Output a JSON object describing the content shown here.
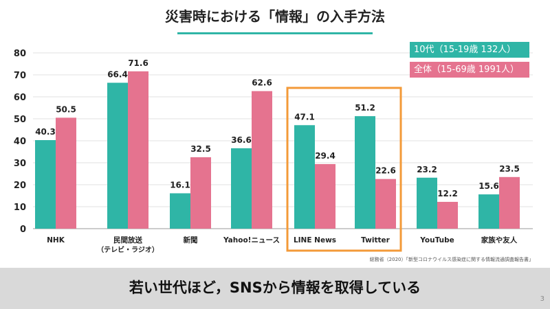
{
  "title": "災害時における「情報」の入手方法",
  "message": "若い世代ほど，SNSから情報を取得している",
  "source": "総務省（2020）「新型コロナウイルス感染症に関する情報流通調査報告書」",
  "page_number": "3",
  "colors": {
    "teal": "#2fb5a6",
    "pink": "#e5738f",
    "highlight": "#f39a38"
  },
  "chart_data": {
    "type": "bar",
    "categories": [
      "NHK",
      "民間放送\n（テレビ・ラジオ）",
      "新聞",
      "Yahoo!ニュース",
      "LINE News",
      "Twitter",
      "YouTube",
      "家族や友人"
    ],
    "series": [
      {
        "name": "10代（15-19歳  132人）",
        "values": [
          40.3,
          66.4,
          16.1,
          36.6,
          47.1,
          51.2,
          23.2,
          15.6
        ]
      },
      {
        "name": "全体（15-69歳  1991人）",
        "values": [
          50.5,
          71.6,
          32.5,
          62.6,
          29.4,
          22.6,
          12.2,
          23.5
        ]
      }
    ],
    "ylim": [
      0,
      80
    ],
    "yticks": [
      0,
      10,
      20,
      30,
      40,
      50,
      60,
      70,
      80
    ],
    "grid": true,
    "legend": "top-right",
    "highlighted_categories": [
      "LINE News",
      "Twitter"
    ]
  }
}
